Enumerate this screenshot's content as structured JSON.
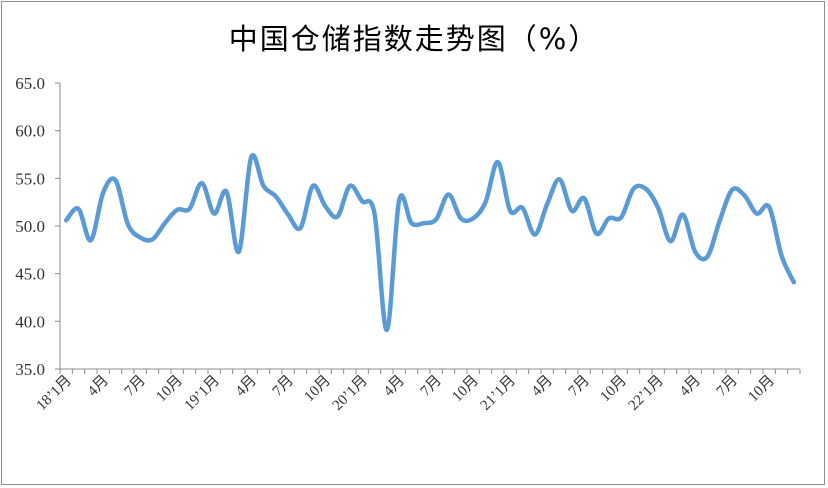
{
  "chart_data": {
    "type": "line",
    "title": "中国仓储指数走势图（%）",
    "xlabel": "",
    "ylabel": "",
    "ylim": [
      35,
      65
    ],
    "yticks": [
      "35.0",
      "40.0",
      "45.0",
      "50.0",
      "55.0",
      "60.0",
      "65.0"
    ],
    "grid": false,
    "legend": "none",
    "line_color": "#5b9bd5",
    "x_labels": [
      {
        "index": 0,
        "label": "18’1月"
      },
      {
        "index": 3,
        "label": "4月"
      },
      {
        "index": 6,
        "label": "7月"
      },
      {
        "index": 9,
        "label": "10月"
      },
      {
        "index": 12,
        "label": "19’1月"
      },
      {
        "index": 15,
        "label": "4月"
      },
      {
        "index": 18,
        "label": "7月"
      },
      {
        "index": 21,
        "label": "10月"
      },
      {
        "index": 24,
        "label": "20’1月"
      },
      {
        "index": 27,
        "label": "4月"
      },
      {
        "index": 30,
        "label": "7月"
      },
      {
        "index": 33,
        "label": "10月"
      },
      {
        "index": 36,
        "label": "21’1月"
      },
      {
        "index": 39,
        "label": "4月"
      },
      {
        "index": 42,
        "label": "7月"
      },
      {
        "index": 45,
        "label": "10月"
      },
      {
        "index": 48,
        "label": "22’1月"
      },
      {
        "index": 51,
        "label": "4月"
      },
      {
        "index": 54,
        "label": "7月"
      },
      {
        "index": 57,
        "label": "10月"
      }
    ],
    "series": [
      {
        "values": [
          50.6,
          51.8,
          48.5,
          53.5,
          54.8,
          50.2,
          48.8,
          48.6,
          50.3,
          51.7,
          51.8,
          54.5,
          51.3,
          53.6,
          47.3,
          57.2,
          54.2,
          53.1,
          51.2,
          49.8,
          54.2,
          52.1,
          51.0,
          54.2,
          52.6,
          51.3,
          39.1,
          52.7,
          50.3,
          50.3,
          50.7,
          53.3,
          50.8,
          50.8,
          52.5,
          56.7,
          51.6,
          51.9,
          49.1,
          52.3,
          54.9,
          51.6,
          52.9,
          49.2,
          50.8,
          50.9,
          53.9,
          53.9,
          51.9,
          48.4,
          51.2,
          47.3,
          46.8,
          50.6,
          53.8,
          53.2,
          51.3,
          52.0,
          46.9,
          44.1
        ]
      }
    ]
  }
}
